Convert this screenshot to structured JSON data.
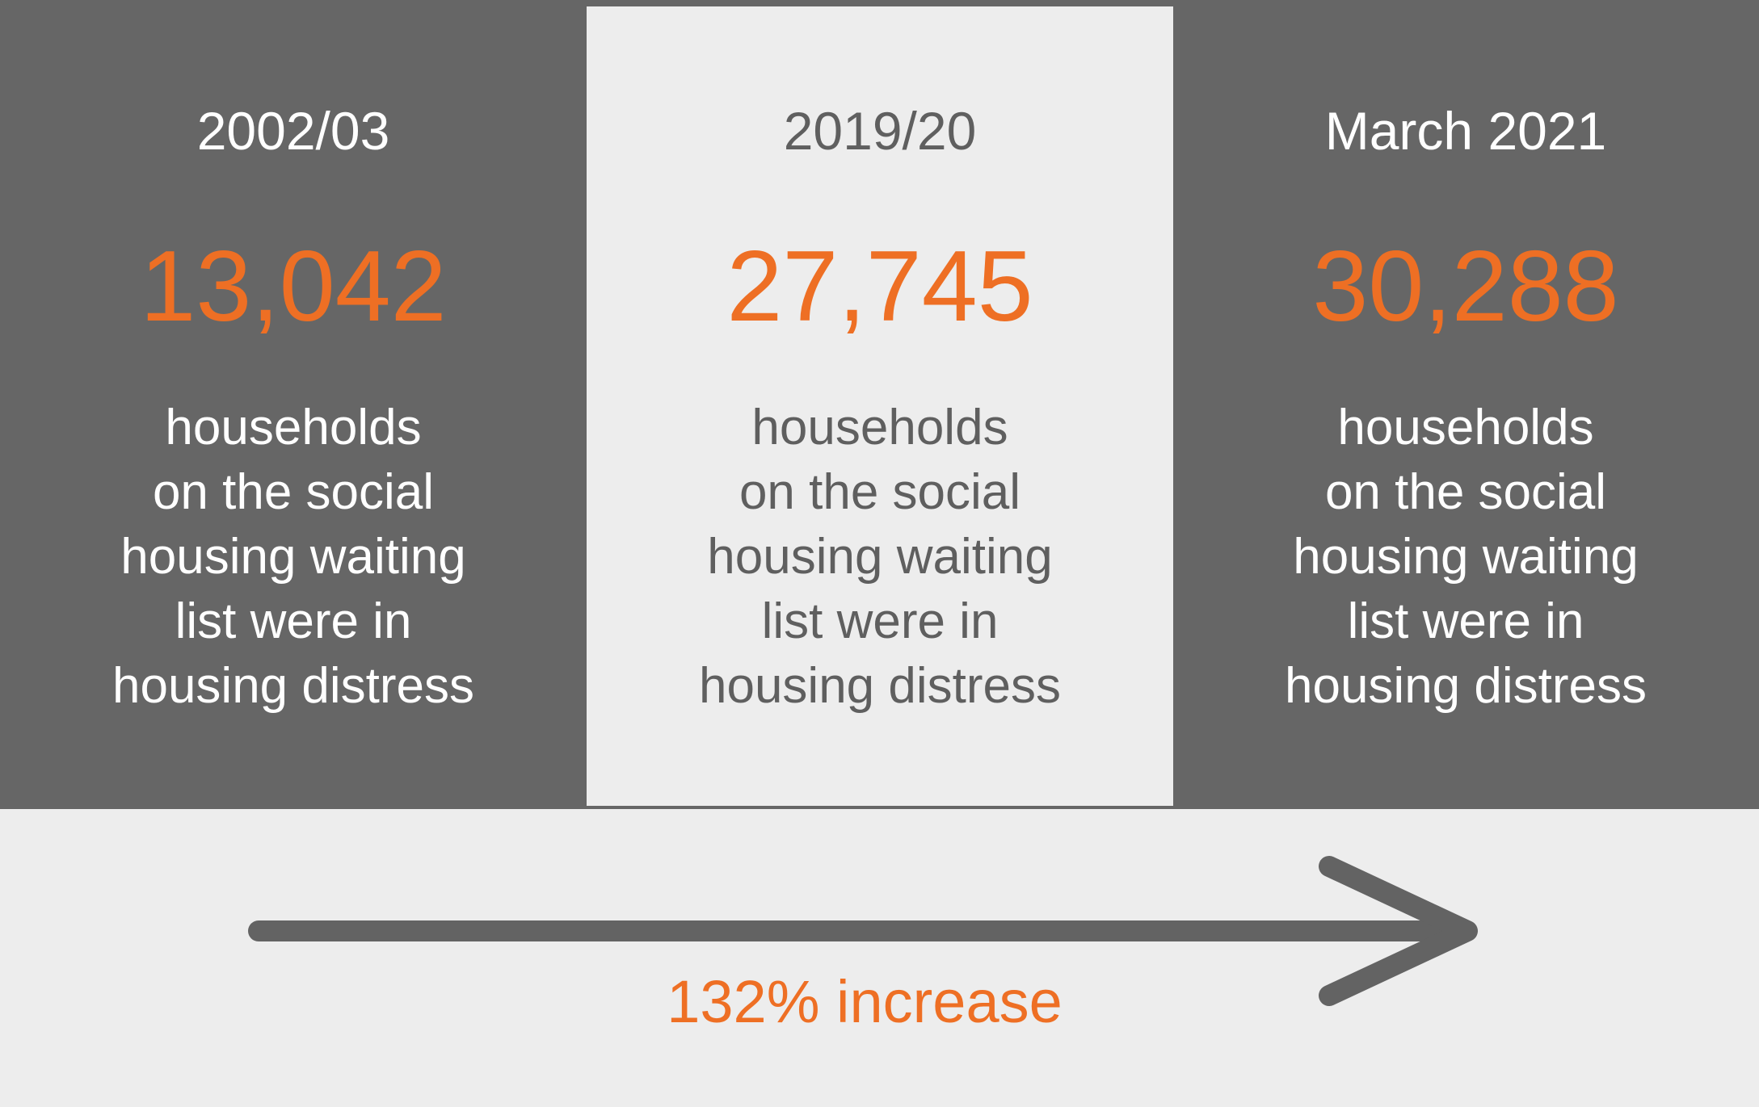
{
  "panels": [
    {
      "period": "2002/03",
      "count": "13,042",
      "caption": "households\non the social\nhousing waiting\nlist were in\nhousing distress"
    },
    {
      "period": "2019/20",
      "count": "27,745",
      "caption": "households\non the social\nhousing waiting\nlist were in\nhousing distress"
    },
    {
      "period": "March 2021",
      "count": "30,288",
      "caption": "households\non the social\nhousing waiting\nlist were in\nhousing distress"
    }
  ],
  "trend": {
    "label": "132% increase"
  },
  "colors": {
    "dark_panel": "#666666",
    "light_panel": "#ededed",
    "accent": "#ee6f24",
    "arrow": "#636363"
  },
  "icons": {
    "trend_arrow": "right-arrow-icon"
  }
}
